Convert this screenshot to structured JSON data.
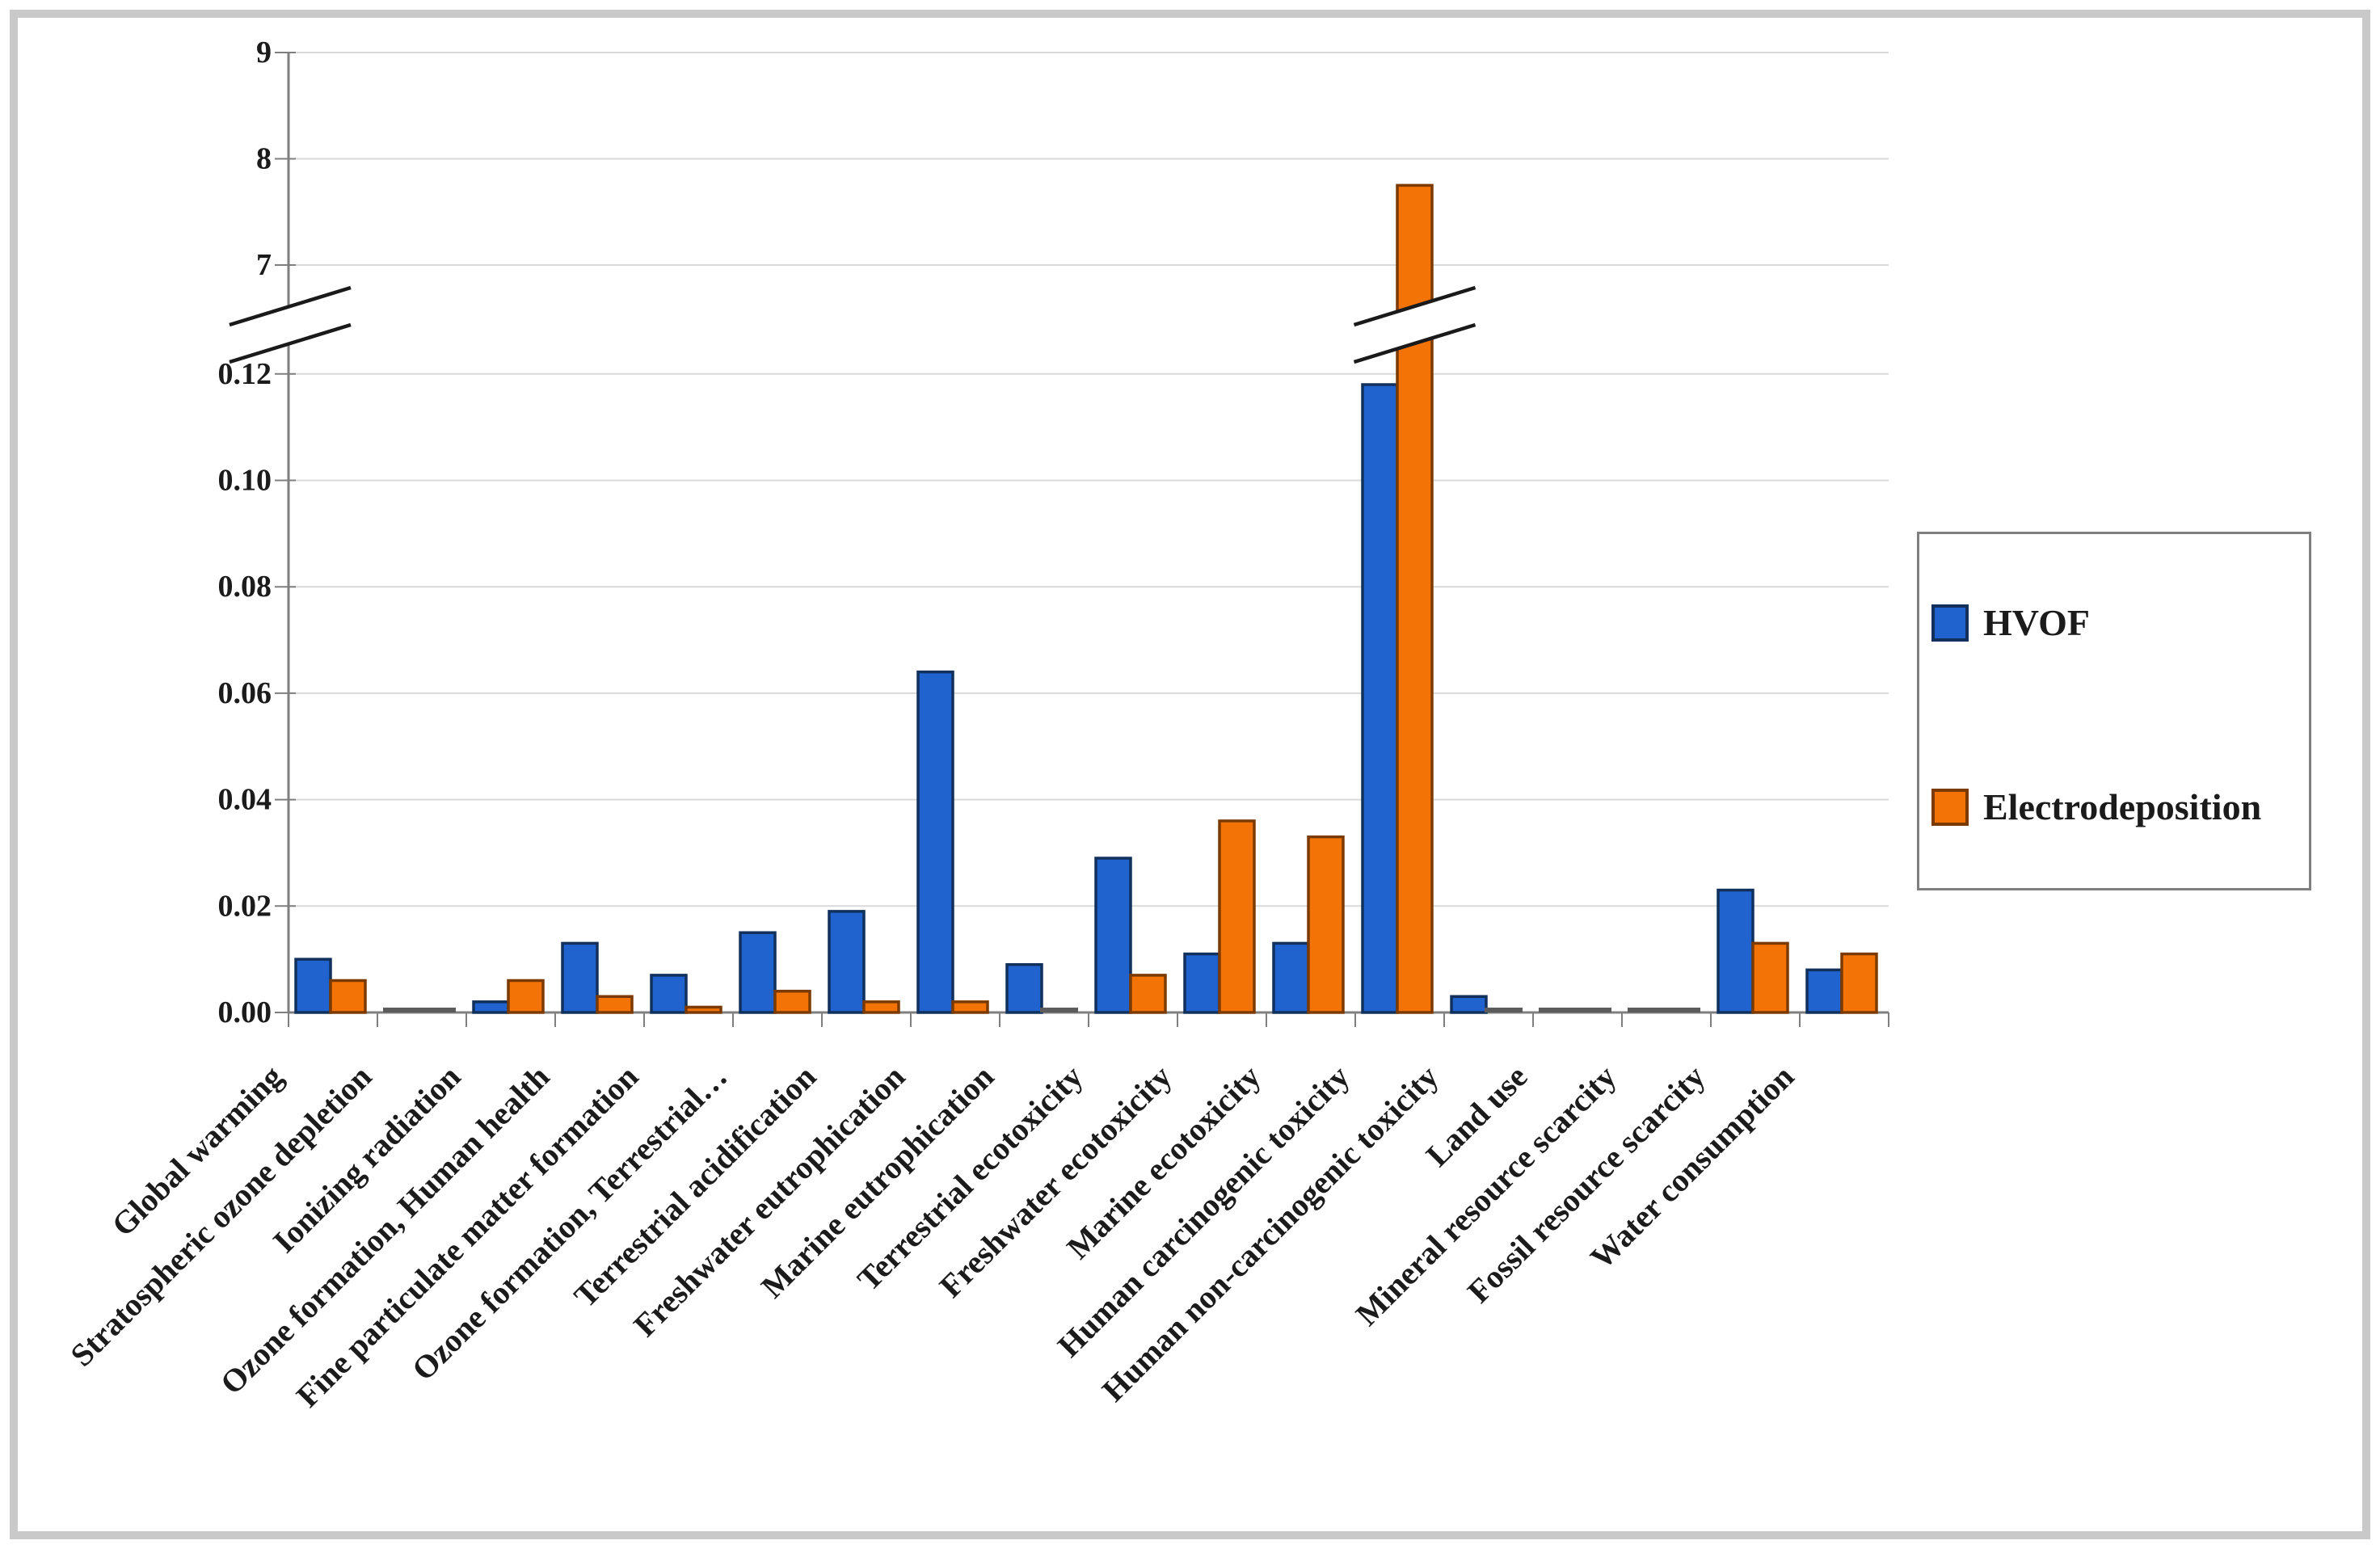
{
  "figure": {
    "background": "#ffffff",
    "frame_color": "#c9c9c9"
  },
  "legend": {
    "position": "right",
    "items": [
      {
        "label": "HVOF",
        "color": "#2063cf",
        "border": "#11305c"
      },
      {
        "label": "Electrodeposition",
        "color": "#f47306",
        "border": "#7c3a03"
      }
    ]
  },
  "chart_data": {
    "type": "bar",
    "title": "",
    "xlabel": "",
    "ylabel": "",
    "grid": true,
    "legend_position": "right",
    "categories": [
      "Global warming",
      "Stratospheric ozone depletion",
      "Ionizing radiation",
      "Ozone formation, Human health",
      "Fine particulate matter formation",
      "Ozone formation, Terrestrial…",
      "Terrestrial acidification",
      "Freshwater eutrophication",
      "Marine eutrophication",
      "Terrestrial ecotoxicity",
      "Freshwater ecotoxicity",
      "Marine ecotoxicity",
      "Human carcinogenic toxicity",
      "Human non-carcinogenic toxicity",
      "Land use",
      "Mineral resource scarcity",
      "Fossil resource scarcity",
      "Water consumption"
    ],
    "series": [
      {
        "name": "HVOF",
        "color": "#2063cf",
        "border": "#11305c",
        "values": [
          0.01,
          0,
          0.002,
          0.013,
          0.007,
          0.015,
          0.019,
          0.064,
          0.009,
          0.029,
          0.011,
          0.013,
          0.118,
          0.003,
          0,
          0,
          0.023,
          0.008
        ]
      },
      {
        "name": "Electrodeposition",
        "color": "#f47306",
        "border": "#7c3a03",
        "values": [
          0.006,
          0,
          0.006,
          0.003,
          0.001,
          0.004,
          0.002,
          0.002,
          0,
          0.007,
          0.036,
          0.033,
          7.75,
          0,
          0,
          0,
          0.013,
          0.011
        ]
      }
    ],
    "y_axis": {
      "broken": true,
      "lower_section": {
        "min": 0.0,
        "max": 0.12,
        "step": 0.02,
        "tick_labels": [
          "0.00",
          "0.02",
          "0.04",
          "0.06",
          "0.08",
          "0.10",
          "0.12"
        ]
      },
      "upper_section": {
        "min": 7,
        "max": 9,
        "step": 1,
        "tick_labels": [
          "7",
          "8",
          "9"
        ]
      }
    },
    "zero_bar_style": "flat gray line on baseline"
  }
}
